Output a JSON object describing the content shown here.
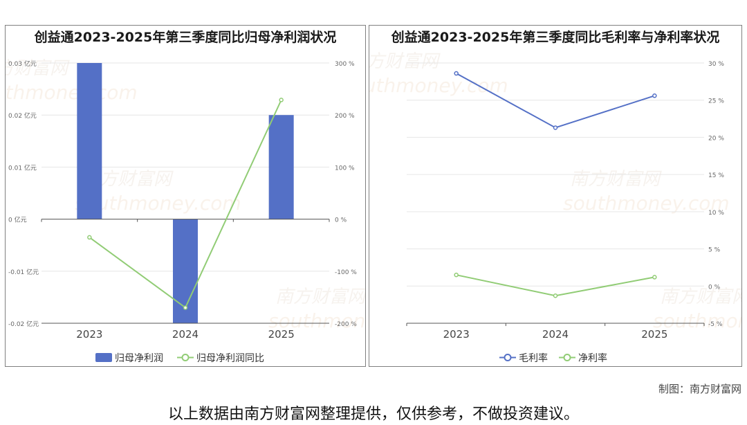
{
  "charts_colors": {
    "bar": "#5470c6",
    "green": "#91cc75",
    "blue": "#5470c6",
    "axis": "#555555",
    "grid": "#e6e6e6",
    "tick": "#666666"
  },
  "watermark": {
    "cn": "南方财富网",
    "en": "southmoney.com"
  },
  "footer": {
    "source": "制图：南方财富网",
    "disclaimer": "以上数据由南方财富网整理提供，仅供参考，不做投资建议。"
  },
  "chart_data": [
    {
      "type": "bar",
      "title": "创益通2023-2025年第三季度同比归母净利润状况",
      "categories": [
        "2023",
        "2024",
        "2025"
      ],
      "y_left": {
        "ticks": [
          "0.03 亿元",
          "0.02 亿元",
          "0.01 亿元",
          "0 亿元",
          "-0.01 亿元",
          "-0.02 亿元"
        ],
        "range": [
          -0.02,
          0.03
        ]
      },
      "y_right": {
        "ticks": [
          "300 %",
          "200 %",
          "100 %",
          "0 %",
          "-100 %",
          "-200 %"
        ],
        "range": [
          -200,
          300
        ]
      },
      "series": [
        {
          "name": "归母净利润",
          "type": "bar",
          "axis": "left",
          "values": [
            0.03,
            -0.02,
            0.02
          ]
        },
        {
          "name": "归母净利润同比",
          "type": "line",
          "axis": "right",
          "values": [
            -35,
            -170,
            229
          ]
        }
      ],
      "legend": "bottom"
    },
    {
      "type": "line",
      "title": "创益通2023-2025年第三季度同比毛利率与净利率状况",
      "categories": [
        "2023",
        "2024",
        "2025"
      ],
      "y_right": {
        "ticks": [
          "30 %",
          "25 %",
          "20 %",
          "15 %",
          "10 %",
          "5 %",
          "0 %",
          "-5 %"
        ],
        "range": [
          -5,
          30
        ]
      },
      "series": [
        {
          "name": "毛利率",
          "values": [
            28.6,
            21.3,
            25.6
          ]
        },
        {
          "name": "净利率",
          "values": [
            1.5,
            -1.3,
            1.2
          ]
        }
      ],
      "legend": "bottom"
    }
  ]
}
